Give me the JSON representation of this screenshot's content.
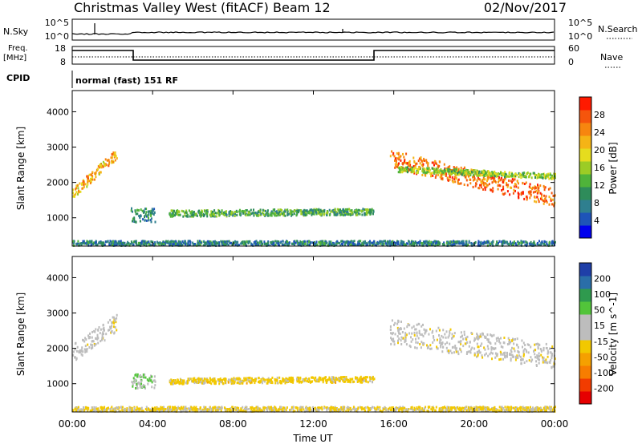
{
  "header": {
    "station": "Christmas Valley West (fitACF)",
    "beam": "Beam 12",
    "date": "02/Nov/2017"
  },
  "top_panels": {
    "nsky": {
      "label": "N.Sky",
      "tick_top": "10^5",
      "tick_bottom": "10^0"
    },
    "nsearch": {
      "label": "N.Search",
      "tick_top": "10^5",
      "tick_bottom": "10^0"
    },
    "freq": {
      "label_line1": "Freq.",
      "label_line2": "[MHz]",
      "tick_top": "18",
      "tick_bottom": "8"
    },
    "nave": {
      "label": "Nave",
      "tick_top": "60",
      "tick_bottom": "0"
    },
    "cpid": {
      "label": "CPID",
      "value": "normal (fast) 151 RF"
    }
  },
  "colors": {
    "power": [
      "#0000ee",
      "#1e54b8",
      "#2f7f8f",
      "#2e8c5a",
      "#4fb33a",
      "#9ccc25",
      "#e6dc1e",
      "#f5b416",
      "#f7860f",
      "#f5550c",
      "#ff1a00"
    ],
    "velocity": [
      "#e60000",
      "#f23c00",
      "#f77d00",
      "#f5a000",
      "#f2c800",
      "#bdbdbd",
      "#bdbdbd",
      "#52c43a",
      "#2f9a4e",
      "#2a6ea8",
      "#1f3fa8"
    ]
  },
  "chart_data": [
    {
      "type": "heatmap",
      "panel": "power",
      "ylabel": "Slant Range [km]",
      "y_ticks": [
        "1000",
        "2000",
        "3000",
        "4000"
      ],
      "ylim": [
        200,
        4600
      ],
      "xlim": [
        0,
        24
      ],
      "colorbar": {
        "label": "Power [dB]",
        "ticks": [
          "4",
          "8",
          "12",
          "16",
          "20",
          "24",
          "28"
        ],
        "range": [
          0,
          32
        ]
      },
      "regions": [
        {
          "t0": 0.0,
          "t1": 2.2,
          "r_start": 1700,
          "r_end": 2850,
          "width": 300,
          "value": 22
        },
        {
          "t0": 2.9,
          "t1": 4.1,
          "r_start": 1100,
          "r_end": 1100,
          "width": 400,
          "value": 10
        },
        {
          "t0": 4.8,
          "t1": 15.0,
          "r_start": 1150,
          "r_end": 1200,
          "width": 180,
          "value": 12
        },
        {
          "t0": 15.8,
          "t1": 24.0,
          "r_start": 2700,
          "r_end": 1600,
          "width": 500,
          "value": 26
        },
        {
          "t0": 16.2,
          "t1": 24.0,
          "r_start": 2400,
          "r_end": 2200,
          "width": 150,
          "value": 15
        },
        {
          "t0": 0.0,
          "t1": 24.0,
          "r_start": 300,
          "r_end": 300,
          "width": 150,
          "value": 8
        }
      ]
    },
    {
      "type": "heatmap",
      "panel": "velocity",
      "ylabel": "Slant Range [km]",
      "y_ticks": [
        "1000",
        "2000",
        "3000",
        "4000"
      ],
      "ylim": [
        200,
        4600
      ],
      "xlim": [
        0,
        24
      ],
      "colorbar": {
        "label": "Velocity [m s^-1]",
        "ticks": [
          "-200",
          "-100",
          "-50",
          "-15",
          "15",
          "50",
          "100",
          "200"
        ],
        "range": [
          -250,
          250
        ]
      },
      "regions": [
        {
          "t0": 0.0,
          "t1": 2.2,
          "r_start": 1900,
          "r_end": 2750,
          "width": 500,
          "value": 0
        },
        {
          "t0": 2.9,
          "t1": 4.1,
          "r_start": 1100,
          "r_end": 1100,
          "width": 400,
          "value": 60
        },
        {
          "t0": 4.8,
          "t1": 15.0,
          "r_start": 1100,
          "r_end": 1150,
          "width": 160,
          "value": -40
        },
        {
          "t0": 15.8,
          "t1": 24.0,
          "r_start": 2500,
          "r_end": 1800,
          "width": 700,
          "value": 0
        },
        {
          "t0": 0.0,
          "t1": 24.0,
          "r_start": 300,
          "r_end": 300,
          "width": 150,
          "value": -30
        }
      ]
    }
  ],
  "x_axis": {
    "label": "Time UT",
    "ticks": [
      "00:00",
      "04:00",
      "08:00",
      "12:00",
      "16:00",
      "20:00",
      "00:00"
    ],
    "range_hours": [
      0,
      24
    ]
  }
}
